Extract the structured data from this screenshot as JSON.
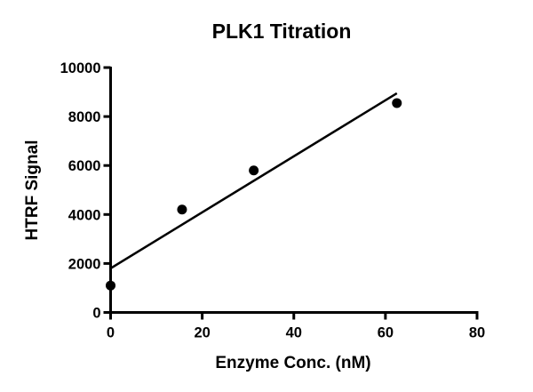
{
  "chart_data": {
    "type": "scatter",
    "title": "PLK1 Titration",
    "xlabel": "Enzyme Conc. (nM)",
    "ylabel": "HTRF Signal",
    "xlim": [
      0,
      80
    ],
    "ylim": [
      0,
      10000
    ],
    "x_ticks": [
      "0",
      "20",
      "40",
      "60",
      "80"
    ],
    "y_ticks": [
      "0",
      "2000",
      "4000",
      "6000",
      "8000",
      "10000"
    ],
    "grid": false,
    "points": [
      {
        "x": 0,
        "y": 1100
      },
      {
        "x": 15.6,
        "y": 4200
      },
      {
        "x": 31.25,
        "y": 5800
      },
      {
        "x": 62.5,
        "y": 8550
      }
    ],
    "fit_line": {
      "x": [
        0,
        62.5
      ],
      "y": [
        1800,
        8950
      ]
    },
    "color": "#000000"
  }
}
